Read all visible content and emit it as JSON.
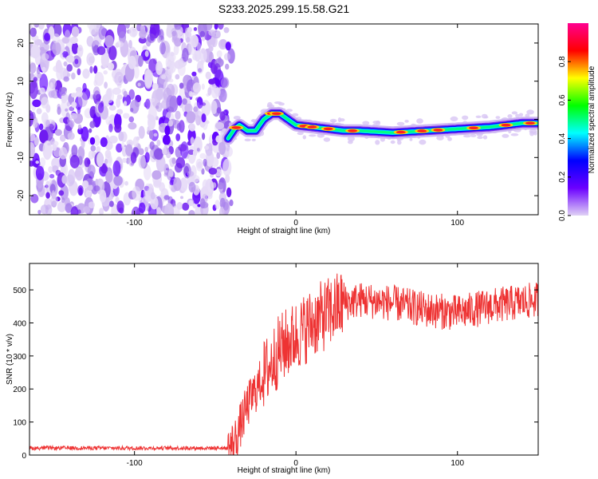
{
  "title": "S233.2025.299.15.58.G21",
  "chart_data": [
    {
      "type": "heatmap",
      "name": "spectrogram",
      "xlabel": "Height of straight line (km)",
      "ylabel": "Frequency (Hz)",
      "xlim": [
        -165,
        150
      ],
      "ylim": [
        -25,
        25
      ],
      "xticks": [
        -100,
        0,
        100
      ],
      "yticks": [
        -20,
        -10,
        0,
        10,
        20
      ],
      "noise_region_x": [
        -165,
        -40
      ],
      "ridge_x": [
        -42,
        -38,
        -35,
        -30,
        -25,
        -20,
        -15,
        -10,
        -5,
        0,
        10,
        20,
        30,
        40,
        60,
        80,
        100,
        120,
        140,
        150
      ],
      "ridge_freq": [
        -5,
        -2.5,
        -1.5,
        -3,
        -3,
        0,
        1.5,
        1.5,
        0,
        -1.5,
        -2,
        -2.5,
        -3,
        -3,
        -3.5,
        -3,
        -2.5,
        -2,
        -1,
        -1
      ],
      "colorbar": {
        "label": "Normalized spectral amplitude",
        "ticks": [
          "0.0",
          "0.2",
          "0.4",
          "0.6",
          "0.8"
        ],
        "range": [
          0,
          1
        ],
        "colors": [
          "#e0d2f5",
          "#6b00ff",
          "#0000ff",
          "#00ffff",
          "#00ff00",
          "#ffff00",
          "#ff0000",
          "#ff0090"
        ]
      }
    },
    {
      "type": "line",
      "name": "snr",
      "xlabel": "Height of straight line (km)",
      "ylabel": "SNR (10 * v/v)",
      "xlim": [
        -165,
        150
      ],
      "ylim": [
        0,
        580
      ],
      "xticks": [
        -100,
        0,
        100
      ],
      "yticks": [
        0,
        100,
        200,
        300,
        400,
        500
      ],
      "color": "#ee3333",
      "trend_x": [
        -165,
        -42,
        -38,
        -30,
        -20,
        -10,
        0,
        10,
        20,
        30,
        40,
        60,
        80,
        100,
        120,
        150
      ],
      "trend_y": [
        20,
        20,
        40,
        150,
        240,
        320,
        360,
        400,
        430,
        460,
        470,
        460,
        440,
        430,
        450,
        470
      ]
    }
  ]
}
